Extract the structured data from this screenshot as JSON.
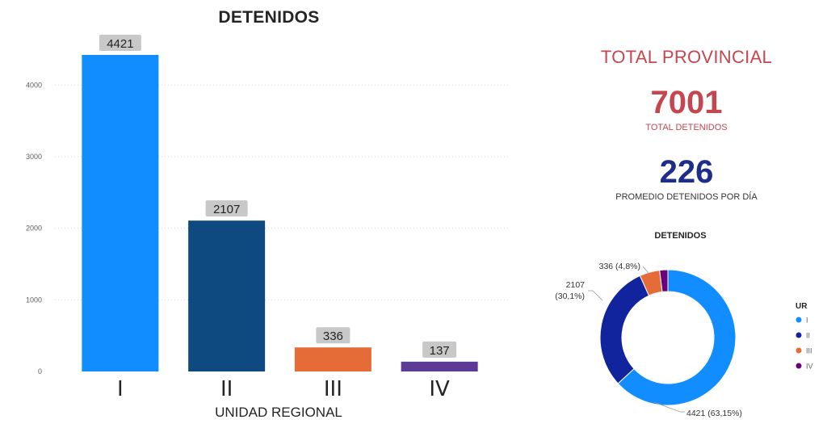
{
  "bar_title": "DETENIDOS",
  "bar_xlabel": "UNIDAD REGIONAL",
  "kpi": {
    "heading": "TOTAL PROVINCIAL",
    "total_value": "7001",
    "total_label": "TOTAL DETENIDOS",
    "avg_value": "226",
    "avg_label": "PROMEDIO DETENIDOS POR DÍA"
  },
  "donut_title": "DETENIDOS",
  "colors": {
    "I": "#118dff",
    "II": "#12239e",
    "III": "#e66c37",
    "IV": "#6b007b",
    "bar_II": "#0e4a80",
    "bar_IV": "#5c3b96",
    "kpi_red": "#c4464f",
    "kpi_blue": "#1f2d8a"
  },
  "chart_data": [
    {
      "type": "bar",
      "title": "DETENIDOS",
      "xlabel": "UNIDAD REGIONAL",
      "ylabel": "",
      "categories": [
        "I",
        "II",
        "III",
        "IV"
      ],
      "values": [
        4421,
        2107,
        336,
        137
      ],
      "data_labels": [
        "4421",
        "2107",
        "336",
        "137"
      ],
      "y_ticks": [
        0,
        1000,
        2000,
        3000,
        4000
      ],
      "ylim": [
        0,
        4500
      ],
      "grid": true
    },
    {
      "type": "pie",
      "style": "donut",
      "title": "DETENIDOS",
      "legend_title": "UR",
      "legend_position": "right",
      "categories": [
        "I",
        "II",
        "III",
        "IV"
      ],
      "values": [
        4421,
        2107,
        336,
        137
      ],
      "data_labels": [
        "4421 (63,15%)",
        "2107 (30,1%)",
        "336 (4,8%)",
        ""
      ]
    }
  ]
}
